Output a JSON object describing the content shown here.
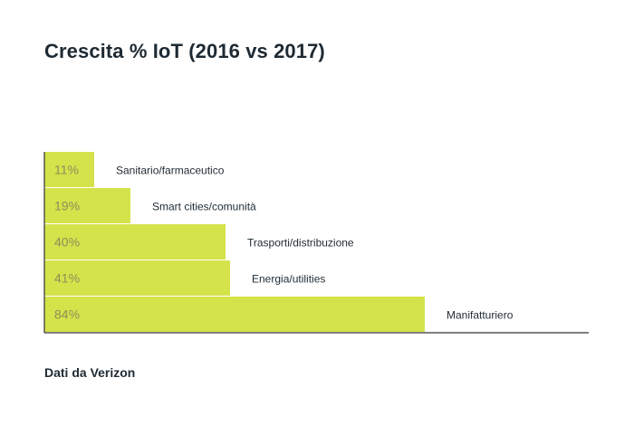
{
  "title": "Crescita % IoT (2016 vs 2017)",
  "source": "Dati da Verizon",
  "colors": {
    "bar": "#d4e34a",
    "value_text": "#8a8f5a",
    "label_text": "#1e2a33",
    "axis": "#333333"
  },
  "chart_data": {
    "type": "bar",
    "orientation": "horizontal",
    "title": "Crescita % IoT (2016 vs 2017)",
    "categories": [
      "Sanitario/farmaceutico",
      "Smart cities/comunità",
      "Trasporti/distribuzione",
      "Energia/utilities",
      "Manifatturiero"
    ],
    "values": [
      11,
      19,
      40,
      41,
      84
    ],
    "value_labels": [
      "11%",
      "19%",
      "40%",
      "41%",
      "84%"
    ],
    "xlim": [
      0,
      100
    ],
    "xlabel": "",
    "ylabel": "",
    "grid": false,
    "legend": "none"
  }
}
